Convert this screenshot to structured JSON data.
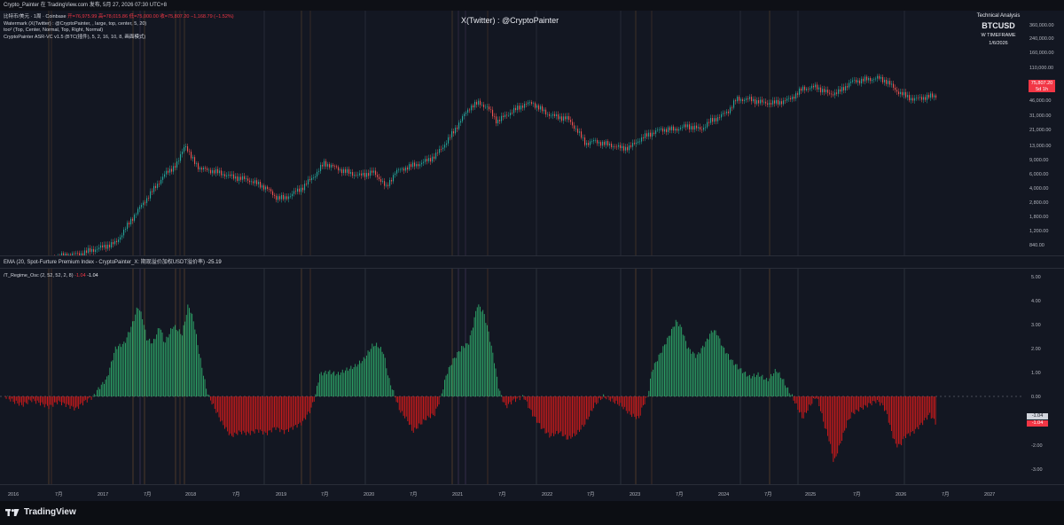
{
  "header": {
    "info": "Crypto_Painter 在 TradingView.com 发布, 5月 27, 2026 07:30 UTC+8"
  },
  "legend": {
    "symbol": "比特币/美元 · 1周 · Coinbase",
    "ohlc_open": "开=76,975.99",
    "ohlc_high": "高=78,015.86",
    "ohlc_low": "低=75,000.00",
    "ohlc_close": "收=75,807.20 −1,168.79 (−1.52%)",
    "line2": "Watermark (X(Twitter) : @CryptoPainter, , large, top, center, 5, 20)",
    "line3": "too² (Top, Center, Normal, Top, Right, Normal)",
    "line4": "CryptoPainter ASR-VC v1.5 (BTC(插件), 5, 2, 16, 10, 8, 画面模式)"
  },
  "watermark": "X(Twitter) : @CryptoPainter",
  "ta_box": {
    "title": "Technical Analysis",
    "symbol": "BTCUSD",
    "timeframe": "W TIMEFRAME",
    "date": "1/6/2026"
  },
  "price_axis": {
    "labels": [
      "360,000.00",
      "240,000.00",
      "160,000.00",
      "110,000.00",
      "46,000.00",
      "31,000.00",
      "21,000.00",
      "13,000.00",
      "9,000.00",
      "6,000.00",
      "4,000.00",
      "2,800.00",
      "1,800.00",
      "1,200.00",
      "840.00"
    ]
  },
  "price_tag": {
    "price": "75,807.20",
    "countdown": "5d 1h"
  },
  "ema_legend": {
    "text": "EMA (20, Spot-Furture Premium Index - CryptoPainter_X: 期现溢价加权USDT溢价率)",
    "value": "-25.19"
  },
  "osc_legend": {
    "name": "/T_Regime_Osc (2, 52, 52, 2, 8)",
    "value_red": "-1.04",
    "value_white": "-1.04"
  },
  "osc_axis": {
    "labels": [
      "5.00",
      "4.00",
      "3.00",
      "2.00",
      "1.00",
      "0.00",
      "-2.00",
      "-3.00"
    ]
  },
  "osc_tags": {
    "white": "-1.04",
    "red": "-1.04"
  },
  "time_axis": {
    "labels": [
      "2016",
      "7月",
      "2017",
      "7月",
      "2018",
      "7月",
      "2019",
      "7月",
      "2020",
      "7月",
      "2021",
      "7月",
      "2022",
      "7月",
      "2023",
      "7月",
      "2024",
      "7月",
      "2025",
      "7月",
      "2026",
      "7月",
      "2027"
    ]
  },
  "footer": {
    "brand": "TradingView"
  },
  "colors": {
    "background": "#131722",
    "bull": "#26a69a",
    "bear": "#ef5350",
    "osc_green": "#2ea86a",
    "osc_red": "#d81b1b",
    "accent_red": "#f23645"
  }
}
